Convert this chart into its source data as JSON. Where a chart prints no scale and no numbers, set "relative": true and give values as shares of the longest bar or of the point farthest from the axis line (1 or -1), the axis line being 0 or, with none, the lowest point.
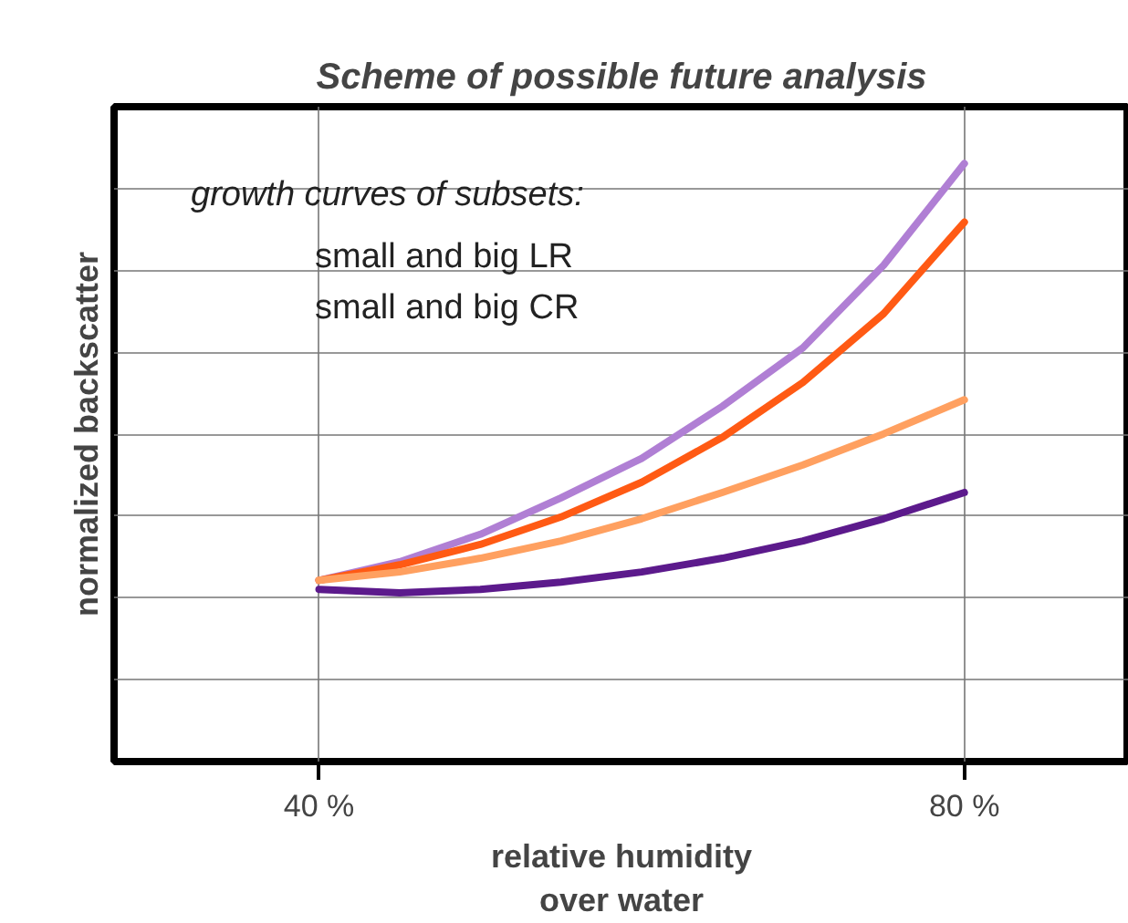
{
  "chart_data": {
    "type": "line",
    "title": "Scheme of possible future analysis",
    "xlabel": "relative humidity\nover water",
    "ylabel": "normalized backscatter",
    "relative": true,
    "x": [
      40,
      45,
      50,
      55,
      60,
      65,
      70,
      75,
      80
    ],
    "xlim": [
      27.3,
      90.2
    ],
    "xticks": [
      {
        "value": 40,
        "label": "40 %"
      },
      {
        "value": 80,
        "label": "80 %"
      }
    ],
    "series": [
      {
        "color": "#b07fd4",
        "values": [
          0.303,
          0.334,
          0.38,
          0.441,
          0.507,
          0.594,
          0.692,
          0.83,
          1
        ]
      },
      {
        "color": "#ff5a14",
        "values": [
          0.303,
          0.329,
          0.363,
          0.409,
          0.467,
          0.542,
          0.634,
          0.749,
          0.902
        ]
      },
      {
        "color": "#ffa060",
        "values": [
          0.303,
          0.317,
          0.34,
          0.369,
          0.406,
          0.45,
          0.496,
          0.548,
          0.605
        ]
      },
      {
        "color": "#5c1a8c",
        "values": [
          0.288,
          0.282,
          0.288,
          0.3,
          0.317,
          0.34,
          0.369,
          0.406,
          0.45
        ]
      }
    ],
    "annotations": [
      "growth curves of subsets:",
      "small and big LR",
      "small and big CR"
    ],
    "grid": true,
    "marker": "none",
    "line_style": "solid"
  }
}
